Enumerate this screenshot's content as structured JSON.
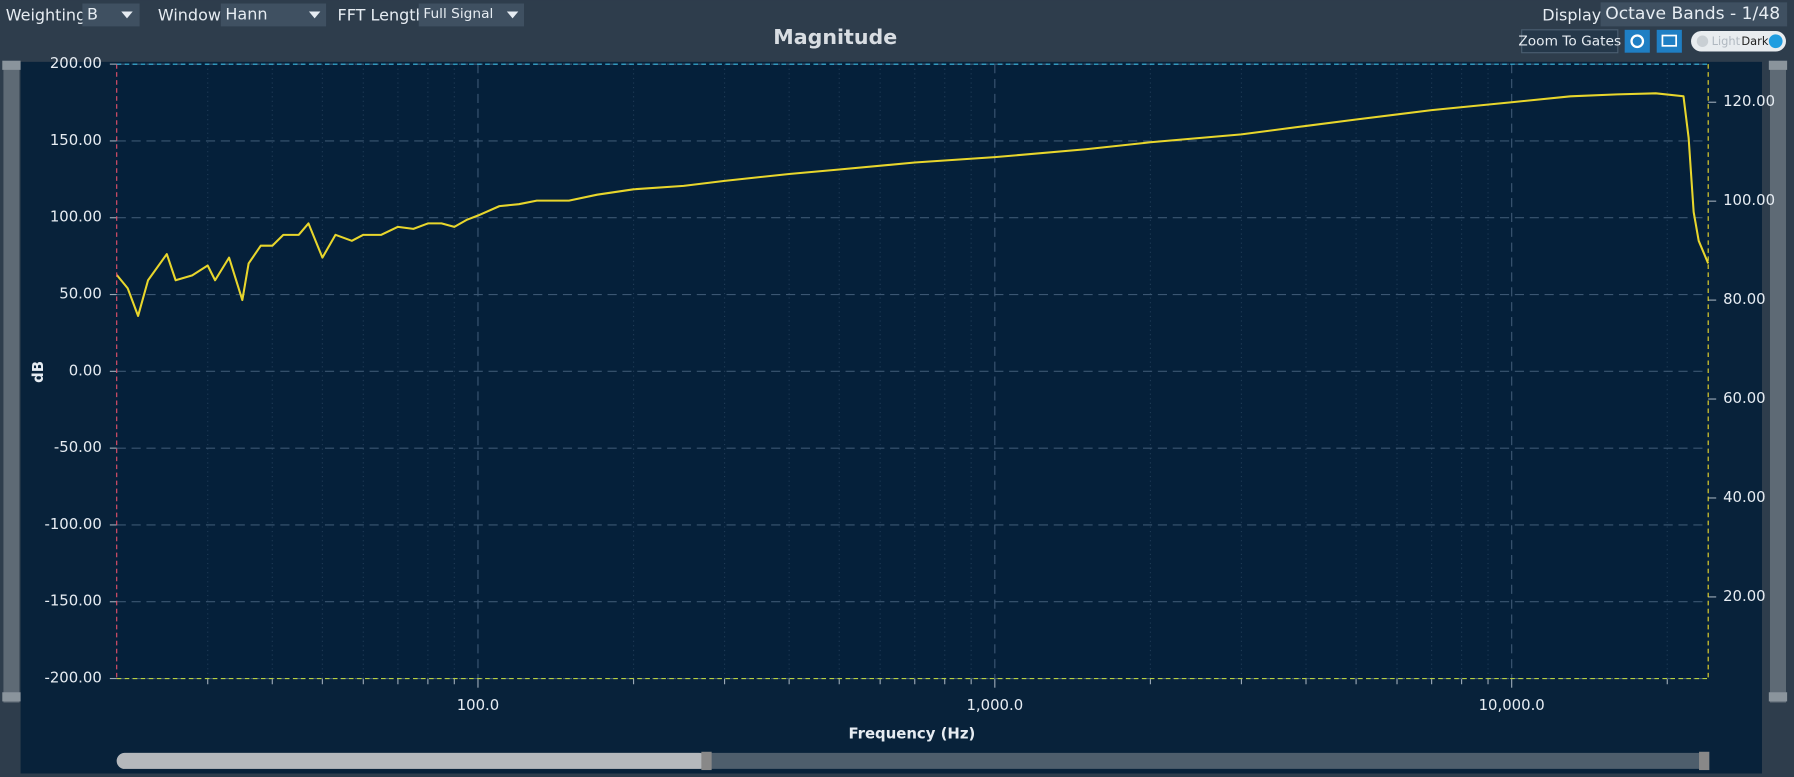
{
  "toolbar": {
    "weighting_label": "Weighting:",
    "weighting_value": "B",
    "window_label": "Window:",
    "window_value": "Hann",
    "fft_label": "FFT Length:",
    "fft_value": "Full Signal",
    "display_label": "Display:",
    "display_value": "Octave Bands - 1/48",
    "zoom_button": "Zoom To Gates",
    "theme_light": "Light",
    "theme_dark": "Dark"
  },
  "chart_data": {
    "type": "line",
    "title": "Magnitude",
    "x_label": "Frequency (Hz)",
    "y_label": "dB",
    "xscale": "log",
    "xlim": [
      20,
      24000
    ],
    "xticks": [
      {
        "value": 100,
        "label": "100.0"
      },
      {
        "value": 1000,
        "label": "1,000.0"
      },
      {
        "value": 10000,
        "label": "10,000.0"
      }
    ],
    "xminorticks": [
      30,
      40,
      50,
      60,
      70,
      80,
      90,
      200,
      300,
      400,
      500,
      600,
      700,
      800,
      900,
      2000,
      3000,
      4000,
      5000,
      6000,
      7000,
      8000,
      9000,
      20000
    ],
    "ylim": [
      -200,
      200
    ],
    "yticks": [
      {
        "value": 200,
        "label": "200.00"
      },
      {
        "value": 150,
        "label": "150.00"
      },
      {
        "value": 100,
        "label": "100.00"
      },
      {
        "value": 50,
        "label": "50.00"
      },
      {
        "value": 0,
        "label": "0.00"
      },
      {
        "value": -50,
        "label": "-50.00"
      },
      {
        "value": -100,
        "label": "-100.00"
      },
      {
        "value": -150,
        "label": "-150.00"
      },
      {
        "value": -200,
        "label": "-200.00"
      }
    ],
    "y2lim": [
      3.5,
      127.7
    ],
    "y2ticks": [
      {
        "value": 120,
        "label": "120.00"
      },
      {
        "value": 100,
        "label": "100.00"
      },
      {
        "value": 80,
        "label": "80.00"
      },
      {
        "value": 60,
        "label": "60.00"
      },
      {
        "value": 40,
        "label": "40.00"
      },
      {
        "value": 20,
        "label": "20.00"
      }
    ],
    "grid": true,
    "x": [
      20,
      21,
      22,
      23,
      25,
      26,
      28,
      30,
      31,
      33,
      35,
      36,
      38,
      40,
      42,
      45,
      47,
      50,
      53,
      57,
      60,
      65,
      70,
      75,
      80,
      85,
      90,
      95,
      100,
      110,
      120,
      130,
      150,
      170,
      200,
      250,
      300,
      400,
      500,
      700,
      1000,
      1500,
      2000,
      3000,
      4000,
      5000,
      7000,
      10000,
      13000,
      16000,
      19000,
      21500,
      22000,
      22500,
      23000,
      24000
    ],
    "series": [
      {
        "color": "#e8d62c",
        "axis": "y2",
        "values": [
          85.1,
          82.4,
          76.8,
          84,
          89.3,
          84,
          85,
          87,
          84,
          88.6,
          80,
          87.4,
          91,
          91,
          93.2,
          93.2,
          95.5,
          88.6,
          93.2,
          92,
          93.2,
          93.2,
          94.8,
          94.4,
          95.5,
          95.5,
          94.8,
          96.2,
          97.1,
          99,
          99.4,
          100.1,
          100.1,
          101.3,
          102.4,
          103.1,
          104.1,
          105.5,
          106.4,
          107.8,
          108.9,
          110.5,
          111.9,
          113.5,
          115.2,
          116.5,
          118.4,
          120,
          121.2,
          121.6,
          121.8,
          121.2,
          112.8,
          97.8,
          92,
          87.4
        ]
      }
    ]
  }
}
